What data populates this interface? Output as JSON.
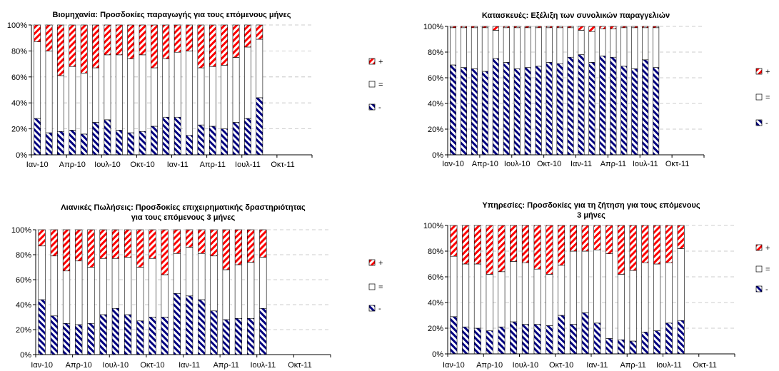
{
  "chart_data": [
    {
      "type": "bar",
      "stacked": true,
      "title": "Βιομηχανία: Προσδοκίες παραγωγής για τους επόμενους μήνες",
      "ylim": [
        0,
        100
      ],
      "y_ticks": [
        "0%",
        "20%",
        "40%",
        "60%",
        "80%",
        "100%"
      ],
      "x_ticks": [
        "Ιαν-10",
        "Απρ-10",
        "Ιουλ-10",
        "Οκτ-10",
        "Ιαν-11",
        "Απρ-11",
        "Ιουλ-11",
        "Οκτ-11"
      ],
      "n_slots": 24,
      "grid": true,
      "legend": "right",
      "series": [
        {
          "name": "-",
          "values": [
            28,
            17,
            18,
            19,
            16,
            25,
            27,
            19,
            17,
            18,
            22,
            29,
            29,
            15,
            23,
            22,
            20,
            25,
            28,
            44
          ]
        },
        {
          "name": "=",
          "values": [
            59,
            63,
            43,
            49,
            47,
            42,
            50,
            58,
            57,
            59,
            45,
            45,
            50,
            65,
            44,
            46,
            49,
            50,
            55,
            45
          ]
        },
        {
          "name": "+",
          "values": [
            13,
            20,
            39,
            32,
            37,
            33,
            23,
            23,
            26,
            23,
            33,
            26,
            21,
            20,
            33,
            32,
            31,
            25,
            17,
            11
          ]
        }
      ]
    },
    {
      "type": "bar",
      "stacked": true,
      "title": "Κατασκευές: Εξέλιξη των συνολικών παραγγελιών",
      "ylim": [
        0,
        100
      ],
      "y_ticks": [
        "0%",
        "20%",
        "40%",
        "60%",
        "80%",
        "100%"
      ],
      "x_ticks": [
        "Ιαν-10",
        "Απρ-10",
        "Ιουλ-10",
        "Οκτ-10",
        "Ιαν-11",
        "Απρ-11",
        "Ιουλ-11",
        "Οκτ-11"
      ],
      "n_slots": 24,
      "grid": true,
      "legend": "right",
      "series": [
        {
          "name": "-",
          "values": [
            70,
            68,
            67,
            65,
            75,
            72,
            67,
            68,
            69,
            72,
            71,
            76,
            78,
            72,
            77,
            76,
            69,
            67,
            74,
            68
          ]
        },
        {
          "name": "=",
          "values": [
            29,
            31,
            32,
            34,
            22,
            27,
            32,
            31,
            30,
            27,
            28,
            23,
            19,
            24,
            21,
            22,
            30,
            32,
            25,
            31
          ]
        },
        {
          "name": "+",
          "values": [
            1,
            1,
            1,
            1,
            3,
            1,
            1,
            1,
            1,
            1,
            1,
            1,
            3,
            4,
            2,
            2,
            1,
            1,
            1,
            1
          ]
        }
      ]
    },
    {
      "type": "bar",
      "stacked": true,
      "title": "Λιανικές Πωλήσεις: Προσδοκίες επιχειρηματικής δραστηριότητας για τους επόμενους 3 μήνες",
      "ylim": [
        0,
        100
      ],
      "y_ticks": [
        "0%",
        "20%",
        "40%",
        "60%",
        "80%",
        "100%"
      ],
      "x_ticks": [
        "Ιαν-10",
        "Απρ-10",
        "Ιουλ-10",
        "Οκτ-10",
        "Ιαν-11",
        "Απρ-11",
        "Ιουλ-11",
        "Οκτ-11"
      ],
      "n_slots": 24,
      "grid": true,
      "legend": "right",
      "series": [
        {
          "name": "-",
          "values": [
            44,
            31,
            25,
            24,
            25,
            32,
            37,
            32,
            27,
            30,
            30,
            49,
            47,
            44,
            35,
            28,
            29,
            29,
            37,
            0
          ]
        },
        {
          "name": "=",
          "values": [
            43,
            48,
            42,
            51,
            45,
            45,
            40,
            46,
            43,
            47,
            34,
            32,
            39,
            37,
            44,
            40,
            43,
            45,
            41,
            0
          ]
        },
        {
          "name": "+",
          "values": [
            13,
            21,
            33,
            25,
            30,
            23,
            23,
            22,
            30,
            23,
            36,
            19,
            14,
            19,
            21,
            32,
            28,
            26,
            22,
            0
          ]
        }
      ]
    },
    {
      "type": "bar",
      "stacked": true,
      "title": "Υπηρεσίες: Προσδοκίες για τη ζήτηση για τους επόμενους 3 μήνες",
      "ylim": [
        0,
        100
      ],
      "y_ticks": [
        "0%",
        "20%",
        "40%",
        "60%",
        "80%",
        "100%"
      ],
      "x_ticks": [
        "Ιαν-10",
        "Απρ-10",
        "Ιουλ-10",
        "Οκτ-10",
        "Ιαν-11",
        "Απρ-11",
        "Ιουλ-11",
        "Οκτ-11"
      ],
      "n_slots": 24,
      "grid": true,
      "legend": "right",
      "series": [
        {
          "name": "-",
          "values": [
            29,
            21,
            20,
            18,
            21,
            25,
            23,
            23,
            22,
            30,
            23,
            32,
            24,
            12,
            11,
            10,
            17,
            18,
            24,
            26
          ]
        },
        {
          "name": "=",
          "values": [
            47,
            49,
            50,
            44,
            43,
            47,
            48,
            43,
            40,
            39,
            57,
            48,
            57,
            66,
            51,
            55,
            54,
            52,
            47,
            56
          ]
        },
        {
          "name": "+",
          "values": [
            24,
            30,
            30,
            38,
            36,
            28,
            29,
            34,
            38,
            31,
            20,
            20,
            19,
            22,
            38,
            35,
            29,
            30,
            29,
            18
          ]
        }
      ]
    }
  ]
}
